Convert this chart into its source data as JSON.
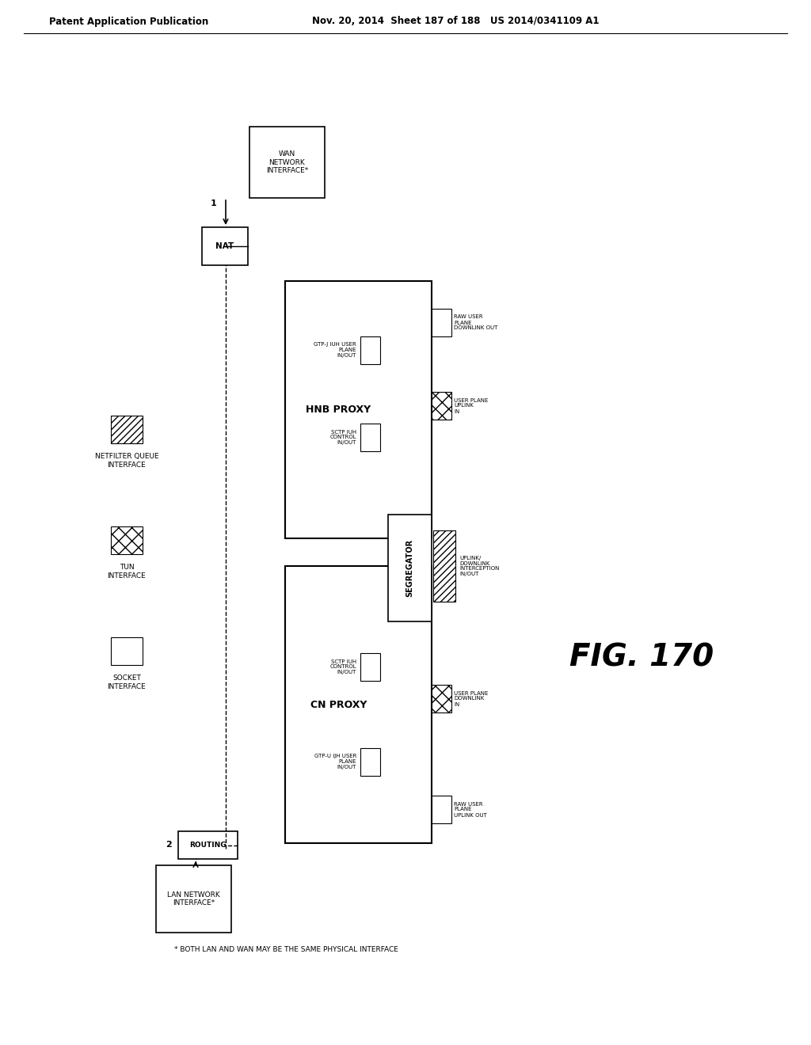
{
  "header_left": "Patent Application Publication",
  "header_right": "Nov. 20, 2014  Sheet 187 of 188   US 2014/0341109 A1",
  "fig_label": "FIG. 170",
  "footnote": "* BOTH LAN AND WAN MAY BE THE SAME PHYSICAL INTERFACE",
  "bg_color": "#ffffff",
  "wan_label": "WAN\nNETWORK\nINTERFACE*",
  "lan_label": "LAN NETWORK\nINTERFACE*",
  "nat_label": "NAT",
  "routing_label": "ROUTING",
  "hnb_label": "HNB PROXY",
  "cn_label": "CN PROXY",
  "seg_label": "SEGREGATOR",
  "socket_label": "SOCKET\nINTERFACE",
  "tun_label": "TUN\nINTERFACE",
  "netfilter_label": "NETFILTER QUEUE\nINTERFACE",
  "gtp_hnb_label": "GTP-J IUH USER\nPLANE\nIN/OUT",
  "sctp_hnb_label": "SCTP IUH\nCONTROL\nIN/OUT",
  "raw_hnb_label": "RAW USER\nPLANE\nDOWNLINK OUT",
  "user_hnb_label": "USER PLANE\nUPLINK\nIN",
  "sctp_cn_label": "SCTP IUH\nCONTROL\nIN/OUT",
  "gtp_cn_label": "GTP-U IJH USER\nPLANE\nIN/OUT",
  "raw_cn_label": "RAW USER\nPLANE\nUPLINK OUT",
  "user_cn_label": "USER PLANE\nDOWNLINK\nIN",
  "interc_label": "UPLINK/\nDOWNLINK\nINTERCEPTION\nIN/OUT"
}
